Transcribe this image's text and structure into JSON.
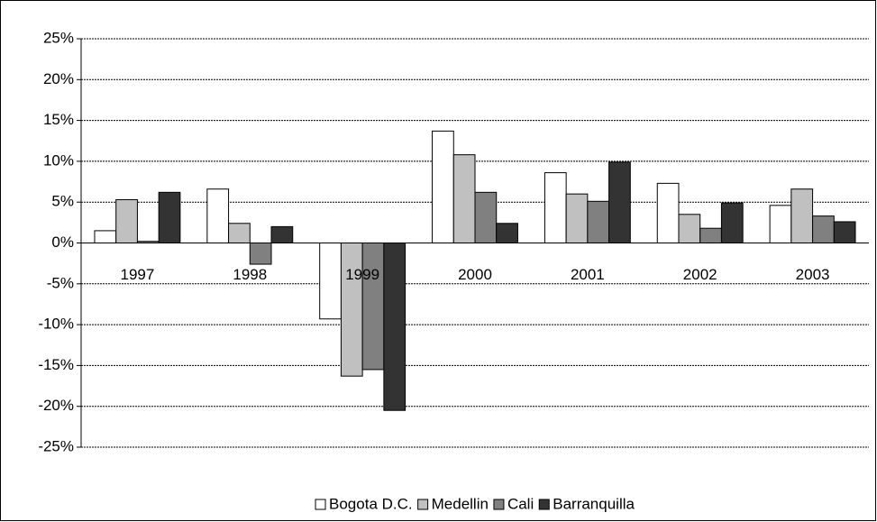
{
  "chart_data": {
    "type": "bar",
    "categories": [
      "1997",
      "1998",
      "1999",
      "2000",
      "2001",
      "2002",
      "2003"
    ],
    "series": [
      {
        "name": "Bogota D.C.",
        "color": "#ffffff",
        "values": [
          1.5,
          6.6,
          -9.3,
          13.7,
          8.6,
          7.3,
          4.6
        ]
      },
      {
        "name": "Medellin",
        "color": "#c0c0c0",
        "values": [
          5.3,
          2.4,
          -16.3,
          10.8,
          6.0,
          3.5,
          6.6
        ]
      },
      {
        "name": "Cali",
        "color": "#808080",
        "values": [
          0.2,
          -2.6,
          -15.5,
          6.2,
          5.1,
          1.8,
          3.3
        ]
      },
      {
        "name": "Barranquilla",
        "color": "#333333",
        "values": [
          6.2,
          2.0,
          -20.5,
          2.4,
          9.9,
          4.9,
          2.6
        ]
      }
    ],
    "ylim": [
      -25,
      25
    ],
    "yticks": [
      {
        "value": -25,
        "label": "-25%"
      },
      {
        "value": -20,
        "label": "-20%"
      },
      {
        "value": -15,
        "label": "-15%"
      },
      {
        "value": -10,
        "label": "-10%"
      },
      {
        "value": -5,
        "label": "-5%"
      },
      {
        "value": 0,
        "label": "0%"
      },
      {
        "value": 5,
        "label": "5%"
      },
      {
        "value": 10,
        "label": "10%"
      },
      {
        "value": 15,
        "label": "15%"
      },
      {
        "value": 20,
        "label": "20%"
      },
      {
        "value": 25,
        "label": "25%"
      }
    ],
    "grid": true,
    "legend": "bottom"
  }
}
